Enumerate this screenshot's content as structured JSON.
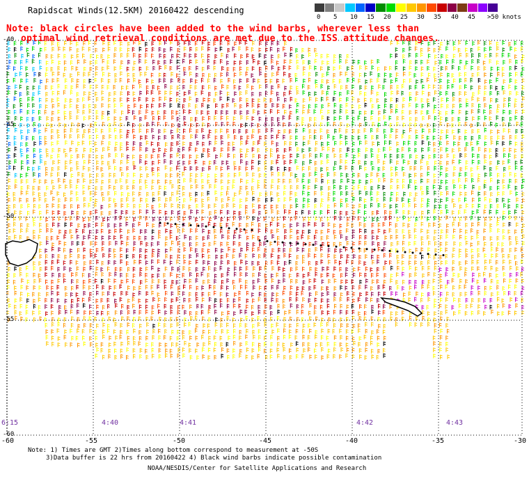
{
  "header": {
    "title": "Rapidscat Winds(12.5KM) 20160422 descending",
    "note_line1": "Note: black circles have been added to the wind barbs, wherever less than",
    "note_line2": "optimal wind retrieval conditions are met due to the ISS attitude changes."
  },
  "legend": {
    "colors": [
      "#3c3c3c",
      "#808080",
      "#c8c8c8",
      "#00c8ff",
      "#0064ff",
      "#0000c8",
      "#008c00",
      "#00dc00",
      "#ffff00",
      "#ffc800",
      "#ff9600",
      "#ff4b00",
      "#c80000",
      "#8c0046",
      "#7d3c14",
      "#c800c8",
      "#8c00ff",
      "#460096"
    ],
    "labels": [
      "0",
      "5",
      "10",
      "15",
      "20",
      "25",
      "30",
      "35",
      "40",
      "45",
      ">50 knots"
    ]
  },
  "map": {
    "lat_labels": [
      "-40",
      "-45",
      "-50",
      "-55",
      "-60"
    ],
    "lon_labels": [
      "-60",
      "-55",
      "-50",
      "-45",
      "-40",
      "-35",
      "-30"
    ],
    "time_labels": [
      "6:15",
      "4:40",
      "4:41",
      "4:42",
      "4:43"
    ]
  },
  "footer": {
    "note1": "Note: 1) Times are GMT 2)Times along bottom correspond to measurement at -50S",
    "note2": "3)Data buffer is 22 hrs from 20160422 4) Black wind barbs indicate possible contamination",
    "credit": "NOAA/NESDIS/Center for Satellite Applications and Research"
  }
}
